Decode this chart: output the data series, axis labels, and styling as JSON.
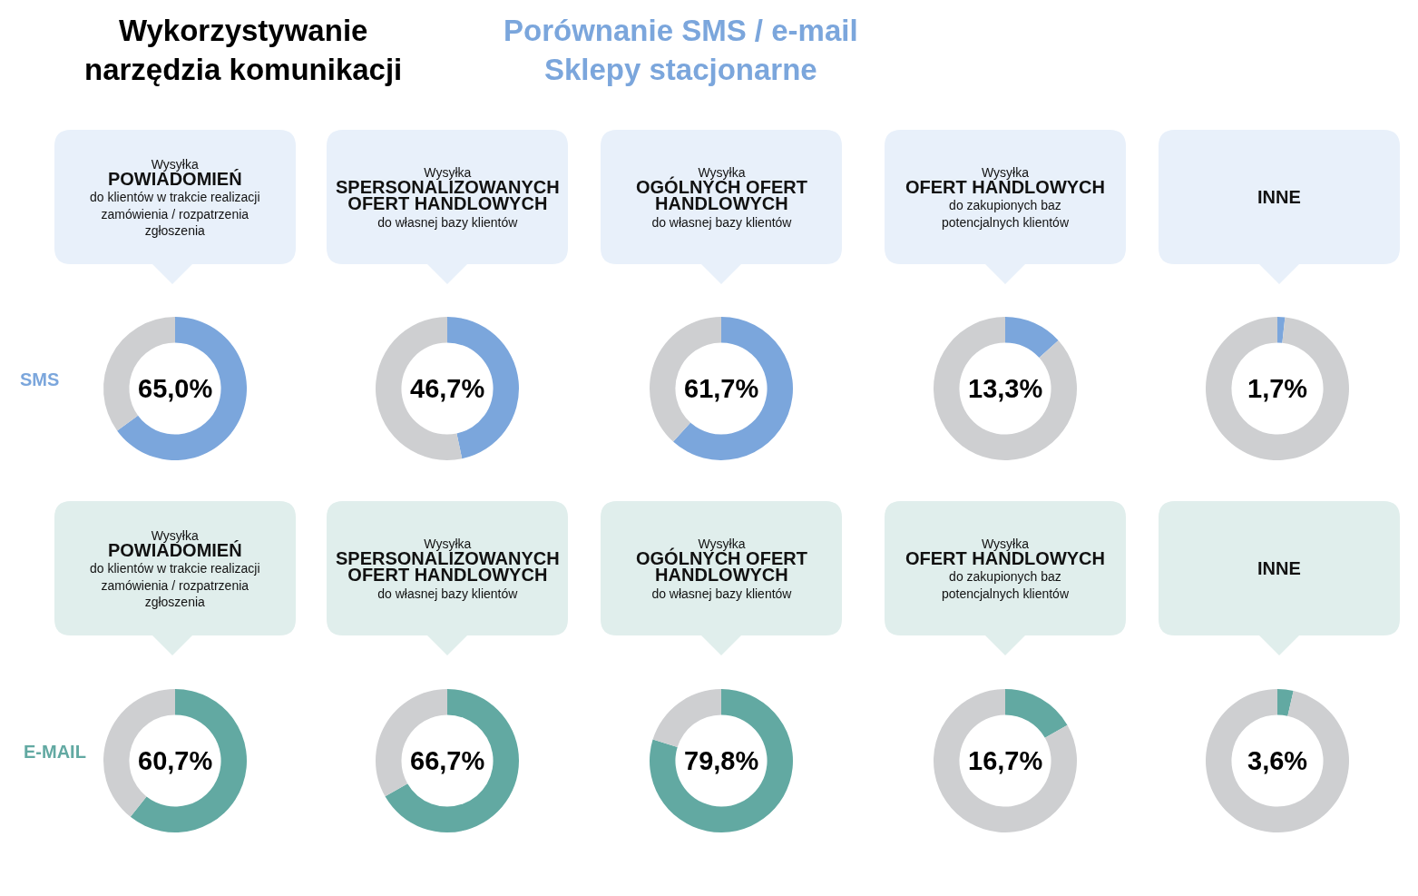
{
  "chart_data": [
    {
      "type": "other",
      "title": "Wykorzystywanie\nnarzędzia komunikacji",
      "subtitle": "Porównanie SMS / e-mail\nSklepy stacjonarne"
    },
    {
      "type": "donut",
      "ylabel": "SMS",
      "subtitle": "Wysyłka",
      "title": "POWIADOMIEŃ",
      "annotations": [
        "do klientów w trakcie realizacji\nzamówienia / rozpatrzenia\nzgłoszenia",
        "65,0%"
      ],
      "categories": [
        null,
        null
      ],
      "values": [
        65.0,
        35.0
      ],
      "colors": [
        "#7ba6dc",
        "#cecfd1"
      ]
    },
    {
      "type": "donut",
      "subtitle": "Wysyłka",
      "title": "SPERSONALIZOWANYCH\nOFERT HANDLOWYCH",
      "annotations": [
        "do własnej bazy klientów",
        "46,7%"
      ],
      "categories": [
        null,
        null
      ],
      "values": [
        46.7,
        53.3
      ],
      "colors": [
        "#7ba6dc",
        "#cecfd1"
      ]
    },
    {
      "type": "donut",
      "subtitle": "Wysyłka",
      "title": "OGÓLNYCH OFERT\nHANDLOWYCH",
      "annotations": [
        "do własnej bazy klientów",
        "61,7%"
      ],
      "categories": [
        null,
        null
      ],
      "values": [
        61.7,
        38.3
      ],
      "colors": [
        "#7ba6dc",
        "#cecfd1"
      ]
    },
    {
      "type": "donut",
      "subtitle": "Wysyłka",
      "title": "OFERT HANDLOWYCH",
      "annotations": [
        "do zakupionych baz\npotencjalnych klientów",
        "13,3%"
      ],
      "categories": [
        null,
        null
      ],
      "values": [
        13.3,
        86.7
      ],
      "colors": [
        "#7ba6dc",
        "#cecfd1"
      ]
    },
    {
      "type": "donut",
      "title": "INNE",
      "annotations": [
        "1,7%"
      ],
      "categories": [
        null,
        null
      ],
      "values": [
        1.7,
        98.3
      ],
      "colors": [
        "#7ba6dc",
        "#cecfd1"
      ]
    },
    {
      "type": "donut",
      "ylabel": "E-MAIL",
      "subtitle": "Wysyłka",
      "title": "POWIADOMIEŃ",
      "annotations": [
        "do klientów w trakcie realizacji\nzamówienia / rozpatrzenia\nzgłoszenia",
        "60,7%"
      ],
      "categories": [
        null,
        null
      ],
      "values": [
        60.7,
        39.3
      ],
      "colors": [
        "#62a9a2",
        "#cecfd1"
      ]
    },
    {
      "type": "donut",
      "subtitle": "Wysyłka",
      "title": "SPERSONALIZOWANYCH\nOFERT HANDLOWYCH",
      "annotations": [
        "do własnej bazy klientów",
        "66,7%"
      ],
      "categories": [
        null,
        null
      ],
      "values": [
        66.7,
        33.3
      ],
      "colors": [
        "#62a9a2",
        "#cecfd1"
      ]
    },
    {
      "type": "donut",
      "subtitle": "Wysyłka",
      "title": "OGÓLNYCH OFERT\nHANDLOWYCH",
      "annotations": [
        "do własnej bazy klientów",
        "79,8%"
      ],
      "categories": [
        null,
        null
      ],
      "values": [
        79.8,
        20.2
      ],
      "colors": [
        "#62a9a2",
        "#cecfd1"
      ]
    },
    {
      "type": "donut",
      "subtitle": "Wysyłka",
      "title": "OFERT HANDLOWYCH",
      "annotations": [
        "do zakupionych baz\npotencjalnych klientów",
        "16,7%"
      ],
      "categories": [
        null,
        null
      ],
      "values": [
        16.7,
        83.3
      ],
      "colors": [
        "#62a9a2",
        "#cecfd1"
      ]
    },
    {
      "type": "donut",
      "title": "INNE",
      "annotations": [
        "3,6%"
      ],
      "categories": [
        null,
        null
      ],
      "values": [
        3.6,
        96.4
      ],
      "colors": [
        "#62a9a2",
        "#cecfd1"
      ]
    }
  ]
}
